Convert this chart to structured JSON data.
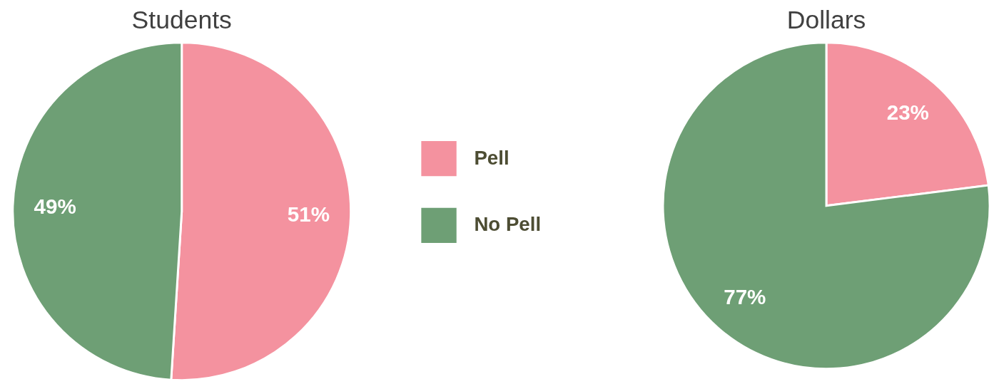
{
  "chart_data": [
    {
      "type": "pie",
      "title": "Students",
      "categories": [
        "Pell",
        "No Pell"
      ],
      "values": [
        51,
        49
      ],
      "colors": [
        "#f4929f",
        "#6e9f75"
      ],
      "value_labels": [
        "51%",
        "49%"
      ],
      "legend": "right"
    },
    {
      "type": "pie",
      "title": "Dollars",
      "categories": [
        null,
        null
      ],
      "values": [
        23,
        77
      ],
      "colors": [
        "#f4929f",
        "#6e9f75"
      ],
      "value_labels": [
        "23%",
        "77%"
      ]
    }
  ]
}
